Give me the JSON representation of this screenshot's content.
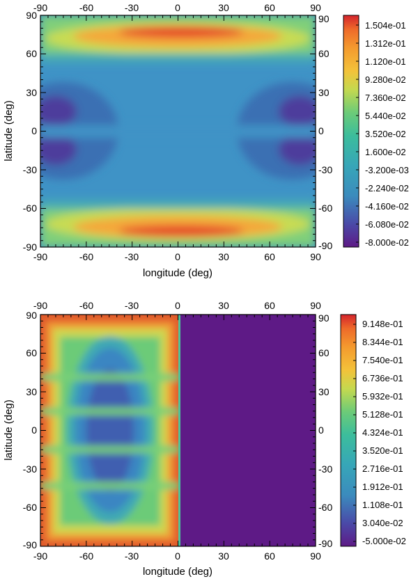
{
  "chart_data": [
    {
      "type": "heatmap",
      "name": "top-panel",
      "xlabel": "longitude (deg)",
      "ylabel": "latitude (deg)",
      "xlim": [
        -90,
        90
      ],
      "ylim": [
        -90,
        90
      ],
      "x_ticks": [
        "-90",
        "-60",
        "-30",
        "0",
        "30",
        "60",
        "90"
      ],
      "y_ticks": [
        "90",
        "60",
        "30",
        "0",
        "-30",
        "-60",
        "-90"
      ],
      "colorbar_labels": [
        "1.504e-01",
        "1.312e-01",
        "1.120e-01",
        "9.280e-02",
        "7.360e-02",
        "5.440e-02",
        "3.520e-02",
        "1.600e-02",
        "-3.200e-03",
        "-2.240e-02",
        "-4.160e-02",
        "-6.080e-02",
        "-8.000e-02"
      ],
      "colorbar_range": [
        -0.08,
        0.1504
      ]
    },
    {
      "type": "heatmap",
      "name": "bottom-panel",
      "xlabel": "longitude (deg)",
      "ylabel": "latitude (deg)",
      "xlim": [
        -90,
        90
      ],
      "ylim": [
        -90,
        90
      ],
      "x_ticks": [
        "-90",
        "-60",
        "-30",
        "0",
        "30",
        "60",
        "90"
      ],
      "y_ticks": [
        "90",
        "60",
        "30",
        "0",
        "-30",
        "-60",
        "-90"
      ],
      "colorbar_labels": [
        "9.148e-01",
        "8.344e-01",
        "7.540e-01",
        "6.736e-01",
        "5.932e-01",
        "5.128e-01",
        "4.324e-01",
        "3.520e-01",
        "2.716e-01",
        "1.912e-01",
        "1.108e-01",
        "3.040e-02",
        "-5.000e-02"
      ],
      "colorbar_range": [
        -0.05,
        0.9148
      ]
    }
  ],
  "colors": {
    "palette": [
      "#5e1a86",
      "#5a2a9a",
      "#4a4aa8",
      "#3f6fb6",
      "#3b8bbd",
      "#37a6b8",
      "#3cbd9c",
      "#6ccb78",
      "#a6d658",
      "#dcdc4a",
      "#f3c23a",
      "#f49a2e",
      "#ee6a2a",
      "#e0392e",
      "#d4242c"
    ]
  }
}
